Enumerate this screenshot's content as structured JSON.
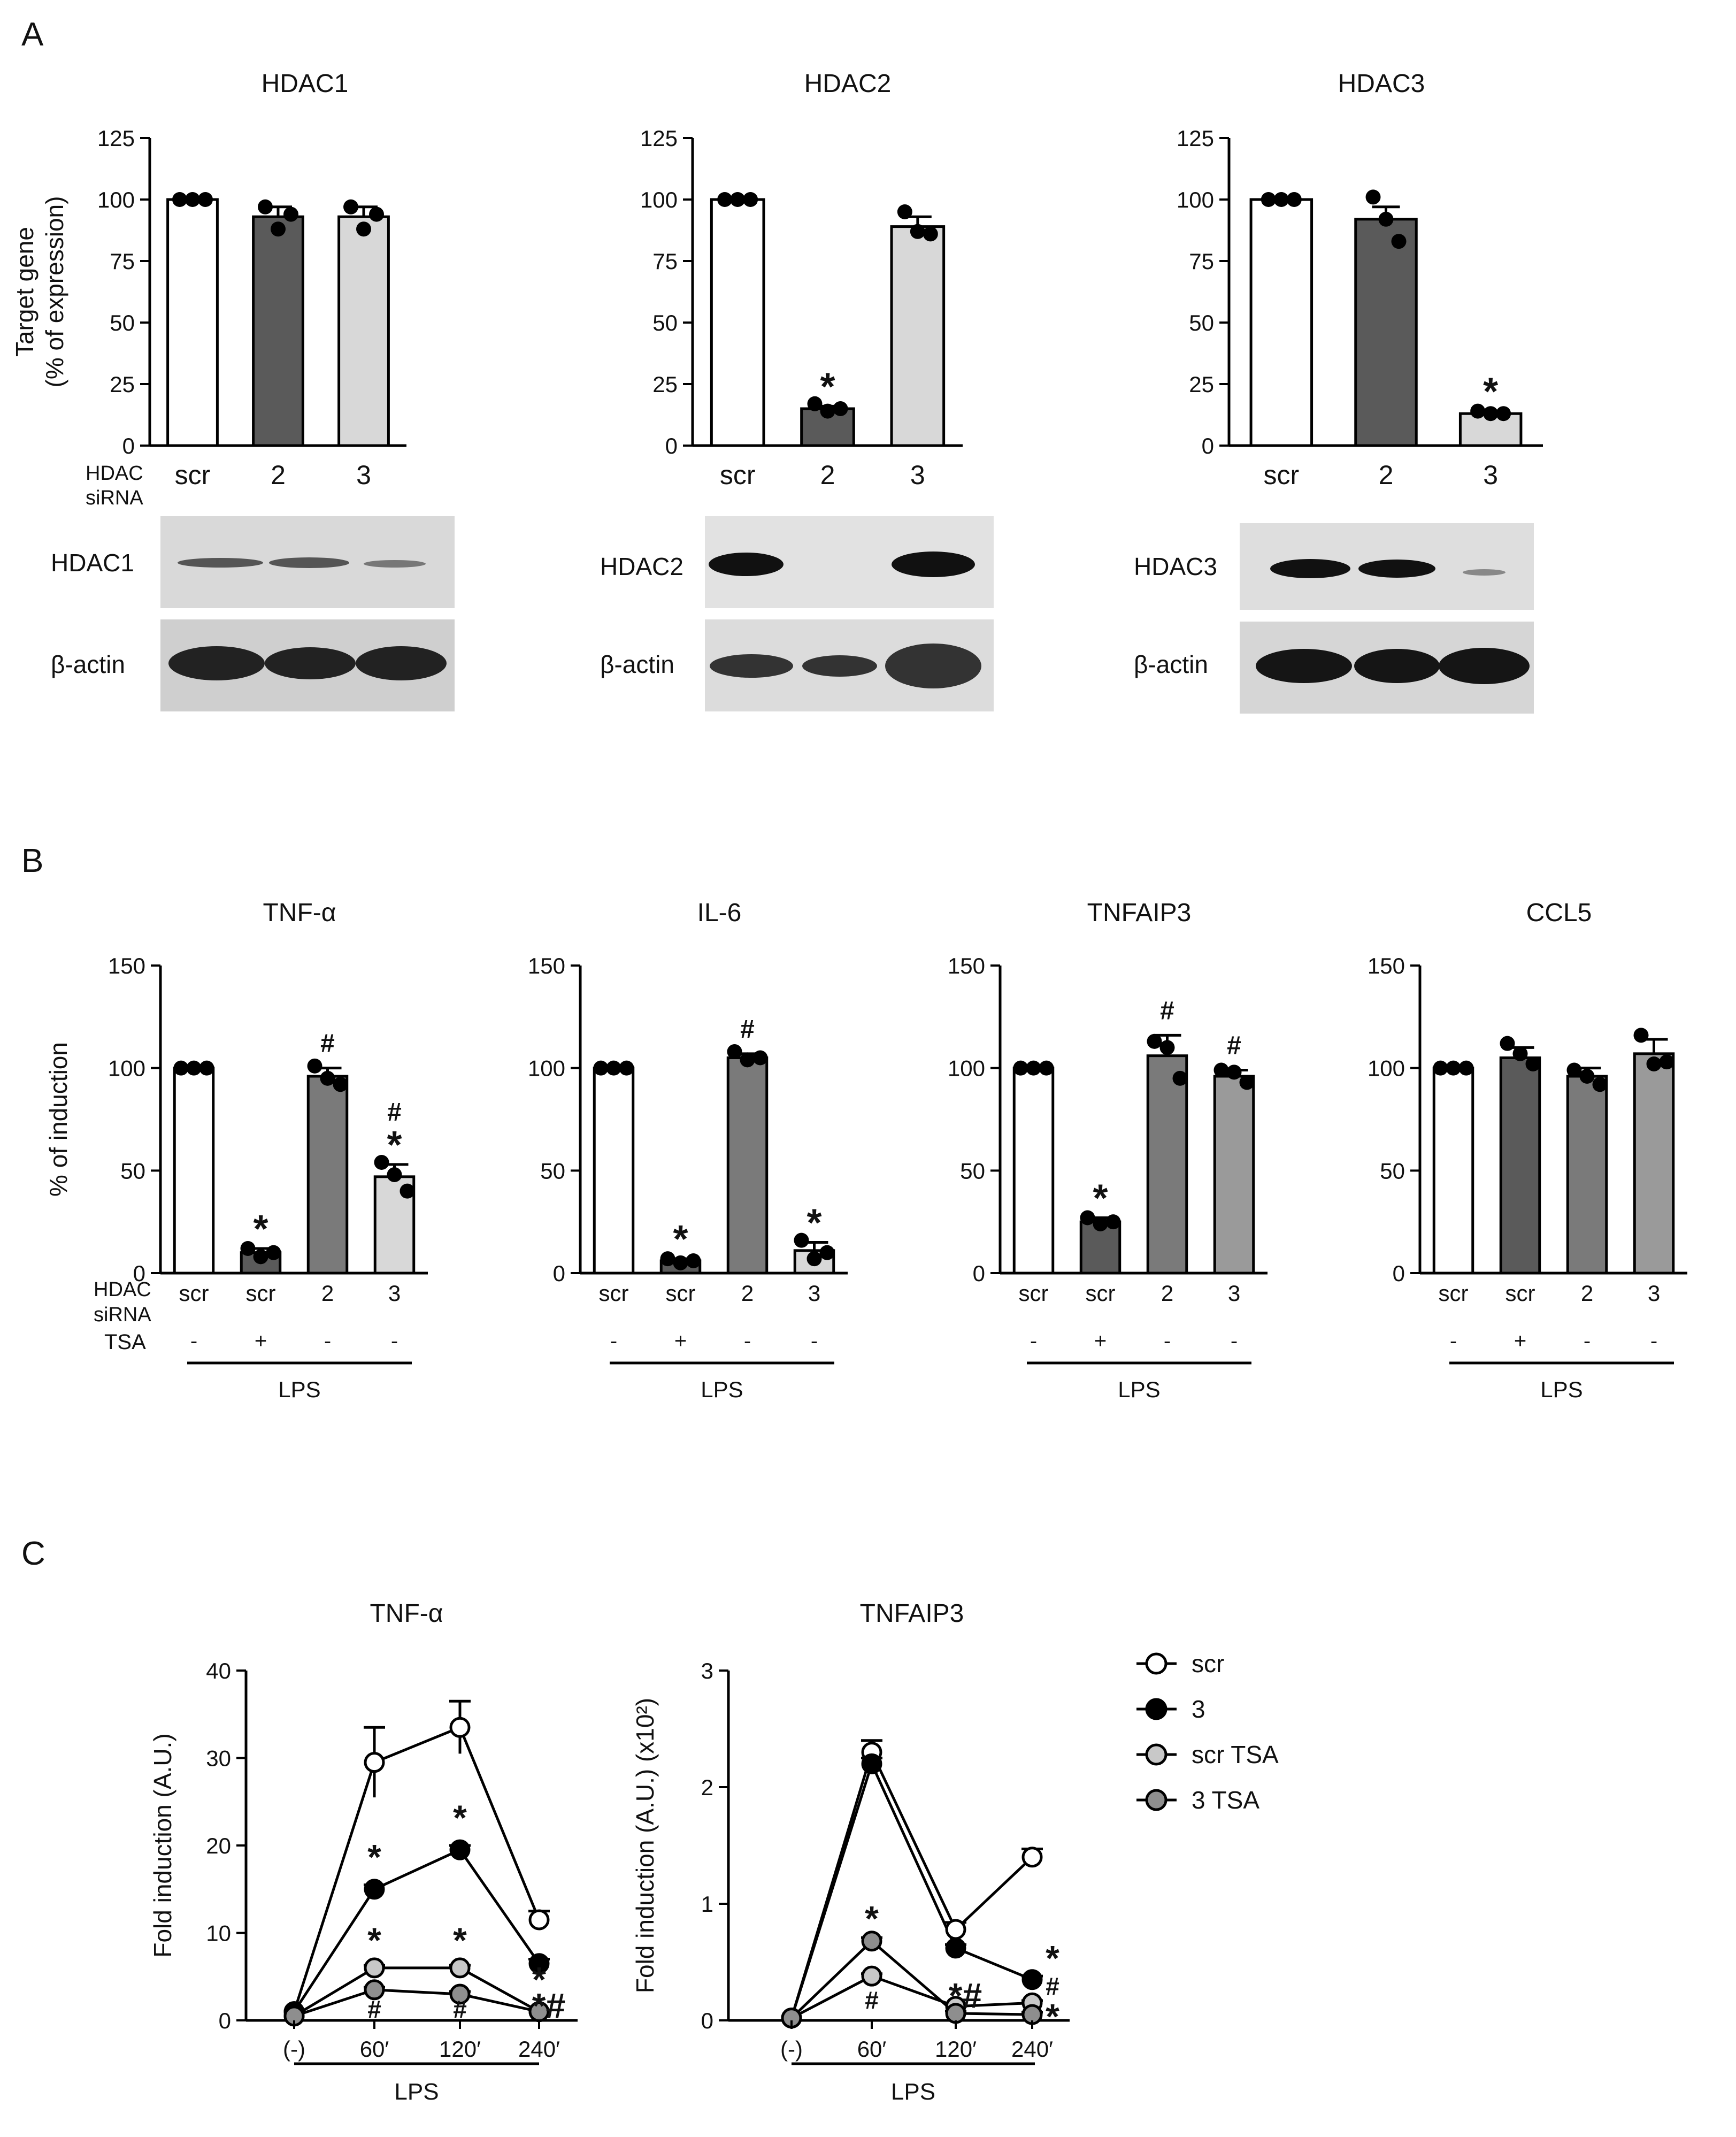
{
  "panels": [
    {
      "letter": "A"
    },
    {
      "letter": "B"
    },
    {
      "letter": "C"
    }
  ],
  "colors": {
    "scr": "#ffffff",
    "dark": "#5a5a5a",
    "mid": "#7a7a7a",
    "light": "#d8d8d8",
    "grey": "#9a9a9a",
    "scr_tsa_marker": "#c8c8c8",
    "three_tsa_marker": "#8e8e8e"
  },
  "row_labels_a": {
    "line1": "HDAC",
    "line2": "siRNA"
  },
  "row_labels_b": {
    "hdac_line1": "HDAC",
    "hdac_line2": "siRNA",
    "tsa": "TSA",
    "lps": "LPS"
  },
  "blot_labels": {
    "hdac1": "HDAC1",
    "hdac2": "HDAC2",
    "hdac3": "HDAC3",
    "actin": "β-actin"
  },
  "legend": [
    {
      "name": "scr",
      "marker": "open-circle"
    },
    {
      "name": "3",
      "marker": "filled-black-circle"
    },
    {
      "name": "scr TSA",
      "marker": "light-grey-circle"
    },
    {
      "name": "3 TSA",
      "marker": "dark-grey-circle"
    }
  ],
  "chart_data": [
    {
      "panel": "A",
      "type": "bar",
      "title": "HDAC1",
      "ylabel_lines": [
        "Target gene",
        "(% of expression)"
      ],
      "ylim": [
        0,
        125
      ],
      "yticks": [
        "0",
        "25",
        "50",
        "75",
        "100",
        "125"
      ],
      "categories": [
        "scr",
        "2",
        "3"
      ],
      "values": [
        100,
        93,
        93
      ],
      "errors": [
        0,
        4,
        4
      ],
      "colors": [
        "#ffffff",
        "#5a5a5a",
        "#d8d8d8"
      ],
      "points": [
        [
          100,
          100,
          100
        ],
        [
          97,
          88,
          94
        ],
        [
          97,
          88,
          94
        ]
      ],
      "marks": [
        "",
        "",
        ""
      ]
    },
    {
      "panel": "A",
      "type": "bar",
      "title": "HDAC2",
      "ylim": [
        0,
        125
      ],
      "yticks": [
        "0",
        "25",
        "50",
        "75",
        "100",
        "125"
      ],
      "categories": [
        "scr",
        "2",
        "3"
      ],
      "values": [
        100,
        15,
        89
      ],
      "errors": [
        0,
        1,
        4
      ],
      "colors": [
        "#ffffff",
        "#5a5a5a",
        "#d8d8d8"
      ],
      "points": [
        [
          100,
          100,
          100
        ],
        [
          17,
          14,
          15
        ],
        [
          95,
          87,
          86
        ]
      ],
      "marks": [
        "",
        "*",
        ""
      ]
    },
    {
      "panel": "A",
      "type": "bar",
      "title": "HDAC3",
      "ylim": [
        0,
        125
      ],
      "yticks": [
        "0",
        "25",
        "50",
        "75",
        "100",
        "125"
      ],
      "categories": [
        "scr",
        "2",
        "3"
      ],
      "values": [
        100,
        92,
        13
      ],
      "errors": [
        0,
        5,
        1
      ],
      "colors": [
        "#ffffff",
        "#5a5a5a",
        "#d8d8d8"
      ],
      "points": [
        [
          100,
          100,
          100
        ],
        [
          101,
          92,
          83
        ],
        [
          14,
          13,
          13
        ]
      ],
      "marks": [
        "",
        "",
        "*"
      ]
    },
    {
      "panel": "B",
      "type": "bar",
      "title": "TNF-α",
      "ylabel": "% of induction",
      "ylim": [
        0,
        150
      ],
      "yticks": [
        "0",
        "50",
        "100",
        "150"
      ],
      "categories": [
        "scr",
        "scr",
        "2",
        "3"
      ],
      "tsa": [
        "-",
        "+",
        "-",
        "-"
      ],
      "values": [
        100,
        10,
        96,
        47
      ],
      "errors": [
        0,
        2,
        4,
        6
      ],
      "colors": [
        "#ffffff",
        "#5a5a5a",
        "#7a7a7a",
        "#d8d8d8"
      ],
      "points": [
        [
          100,
          100,
          100
        ],
        [
          12,
          8,
          10
        ],
        [
          101,
          95,
          92
        ],
        [
          54,
          48,
          40
        ]
      ],
      "marks": [
        "",
        "*",
        "#",
        "#\n*"
      ]
    },
    {
      "panel": "B",
      "type": "bar",
      "title": "IL-6",
      "ylim": [
        0,
        150
      ],
      "yticks": [
        "0",
        "50",
        "100",
        "150"
      ],
      "categories": [
        "scr",
        "scr",
        "2",
        "3"
      ],
      "tsa": [
        "-",
        "+",
        "-",
        "-"
      ],
      "values": [
        100,
        6,
        105,
        11
      ],
      "errors": [
        0,
        1,
        2,
        4
      ],
      "colors": [
        "#ffffff",
        "#5a5a5a",
        "#7a7a7a",
        "#d8d8d8"
      ],
      "points": [
        [
          100,
          100,
          100
        ],
        [
          7,
          5,
          6
        ],
        [
          108,
          104,
          105
        ],
        [
          16,
          7,
          10
        ]
      ],
      "marks": [
        "",
        "*",
        "#",
        "*"
      ]
    },
    {
      "panel": "B",
      "type": "bar",
      "title": "TNFAIP3",
      "ylim": [
        0,
        150
      ],
      "yticks": [
        "0",
        "50",
        "100",
        "150"
      ],
      "categories": [
        "scr",
        "scr",
        "2",
        "3"
      ],
      "tsa": [
        "-",
        "+",
        "-",
        "-"
      ],
      "values": [
        100,
        25,
        106,
        96
      ],
      "errors": [
        0,
        2,
        10,
        3
      ],
      "colors": [
        "#ffffff",
        "#5a5a5a",
        "#7a7a7a",
        "#9a9a9a"
      ],
      "points": [
        [
          100,
          100,
          100
        ],
        [
          27,
          24,
          25
        ],
        [
          113,
          110,
          95
        ],
        [
          99,
          98,
          93
        ]
      ],
      "marks": [
        "",
        "*",
        "#",
        "#"
      ]
    },
    {
      "panel": "B",
      "type": "bar",
      "title": "CCL5",
      "ylim": [
        0,
        150
      ],
      "yticks": [
        "0",
        "50",
        "100",
        "150"
      ],
      "categories": [
        "scr",
        "scr",
        "2",
        "3"
      ],
      "tsa": [
        "-",
        "+",
        "-",
        "-"
      ],
      "values": [
        100,
        105,
        96,
        107
      ],
      "errors": [
        0,
        5,
        4,
        7
      ],
      "colors": [
        "#ffffff",
        "#5a5a5a",
        "#7a7a7a",
        "#9a9a9a"
      ],
      "points": [
        [
          100,
          100,
          100
        ],
        [
          112,
          107,
          102
        ],
        [
          99,
          96,
          92
        ],
        [
          116,
          102,
          103
        ]
      ],
      "marks": [
        "",
        "",
        "",
        ""
      ]
    },
    {
      "panel": "C",
      "type": "line",
      "title": "TNF-α",
      "ylabel": "Fold induction (A.U.)",
      "ylim": [
        0,
        40
      ],
      "yticks": [
        "0",
        "10",
        "20",
        "30",
        "40"
      ],
      "x": [
        "(-)",
        "60′",
        "120′",
        "240′"
      ],
      "xgroup": "LPS",
      "series": [
        {
          "name": "scr",
          "values": [
            1,
            29.5,
            33.5,
            11.5
          ],
          "errors": [
            0,
            4,
            3,
            1
          ]
        },
        {
          "name": "3",
          "values": [
            1,
            15,
            19.5,
            6.5
          ],
          "errors": [
            0,
            0.5,
            0.5,
            0.5
          ]
        },
        {
          "name": "scr TSA",
          "values": [
            0.5,
            6,
            6,
            1
          ],
          "errors": [
            0,
            0.3,
            0.3,
            0.2
          ]
        },
        {
          "name": "3 TSA",
          "values": [
            0.5,
            3.5,
            3,
            1
          ],
          "errors": [
            0,
            0.3,
            0.3,
            0.2
          ]
        }
      ],
      "annotations": [
        {
          "x": "60′",
          "y": 18.5,
          "text": "*"
        },
        {
          "x": "120′",
          "y": 23,
          "text": "*"
        },
        {
          "x": "60′",
          "y": 9,
          "text": "*"
        },
        {
          "x": "120′",
          "y": 9,
          "text": "*"
        },
        {
          "x": "60′",
          "y": 0.3,
          "text": "#"
        },
        {
          "x": "120′",
          "y": 0.3,
          "text": "#"
        },
        {
          "x": "240′",
          "y": 4.5,
          "text": "*"
        },
        {
          "x": "240′",
          "y": 1.5,
          "text": "*#"
        }
      ]
    },
    {
      "panel": "C",
      "type": "line",
      "title": "TNFAIP3",
      "ylabel": "Fold induction (A.U.) (x10²)",
      "ylim": [
        0,
        3
      ],
      "yticks": [
        "0",
        "1",
        "2",
        "3"
      ],
      "x": [
        "(-)",
        "60′",
        "120′",
        "240′"
      ],
      "xgroup": "LPS",
      "series": [
        {
          "name": "scr",
          "values": [
            0.02,
            2.3,
            0.78,
            1.4
          ],
          "errors": [
            0,
            0.1,
            0.06,
            0.07
          ]
        },
        {
          "name": "3",
          "values": [
            0.02,
            2.2,
            0.62,
            0.35
          ],
          "errors": [
            0,
            0.05,
            0.03,
            0.03
          ]
        },
        {
          "name": "scr TSA",
          "values": [
            0.02,
            0.38,
            0.12,
            0.15
          ],
          "errors": [
            0,
            0.02,
            0.02,
            0.02
          ]
        },
        {
          "name": "3 TSA",
          "values": [
            0.02,
            0.68,
            0.06,
            0.05
          ],
          "errors": [
            0,
            0.03,
            0.02,
            0.02
          ]
        }
      ],
      "annotations": [
        {
          "x": "60′",
          "y": 0.86,
          "text": "*"
        },
        {
          "x": "60′",
          "y": 0.1,
          "text": "#"
        },
        {
          "x": "120′",
          "y": 0.2,
          "text": "*#"
        },
        {
          "x": "240′",
          "y": 0.52,
          "text": "*"
        },
        {
          "x": "240′",
          "y": 0.22,
          "text": "#"
        },
        {
          "x": "240′",
          "y": 0.02,
          "text": "*"
        }
      ]
    }
  ]
}
